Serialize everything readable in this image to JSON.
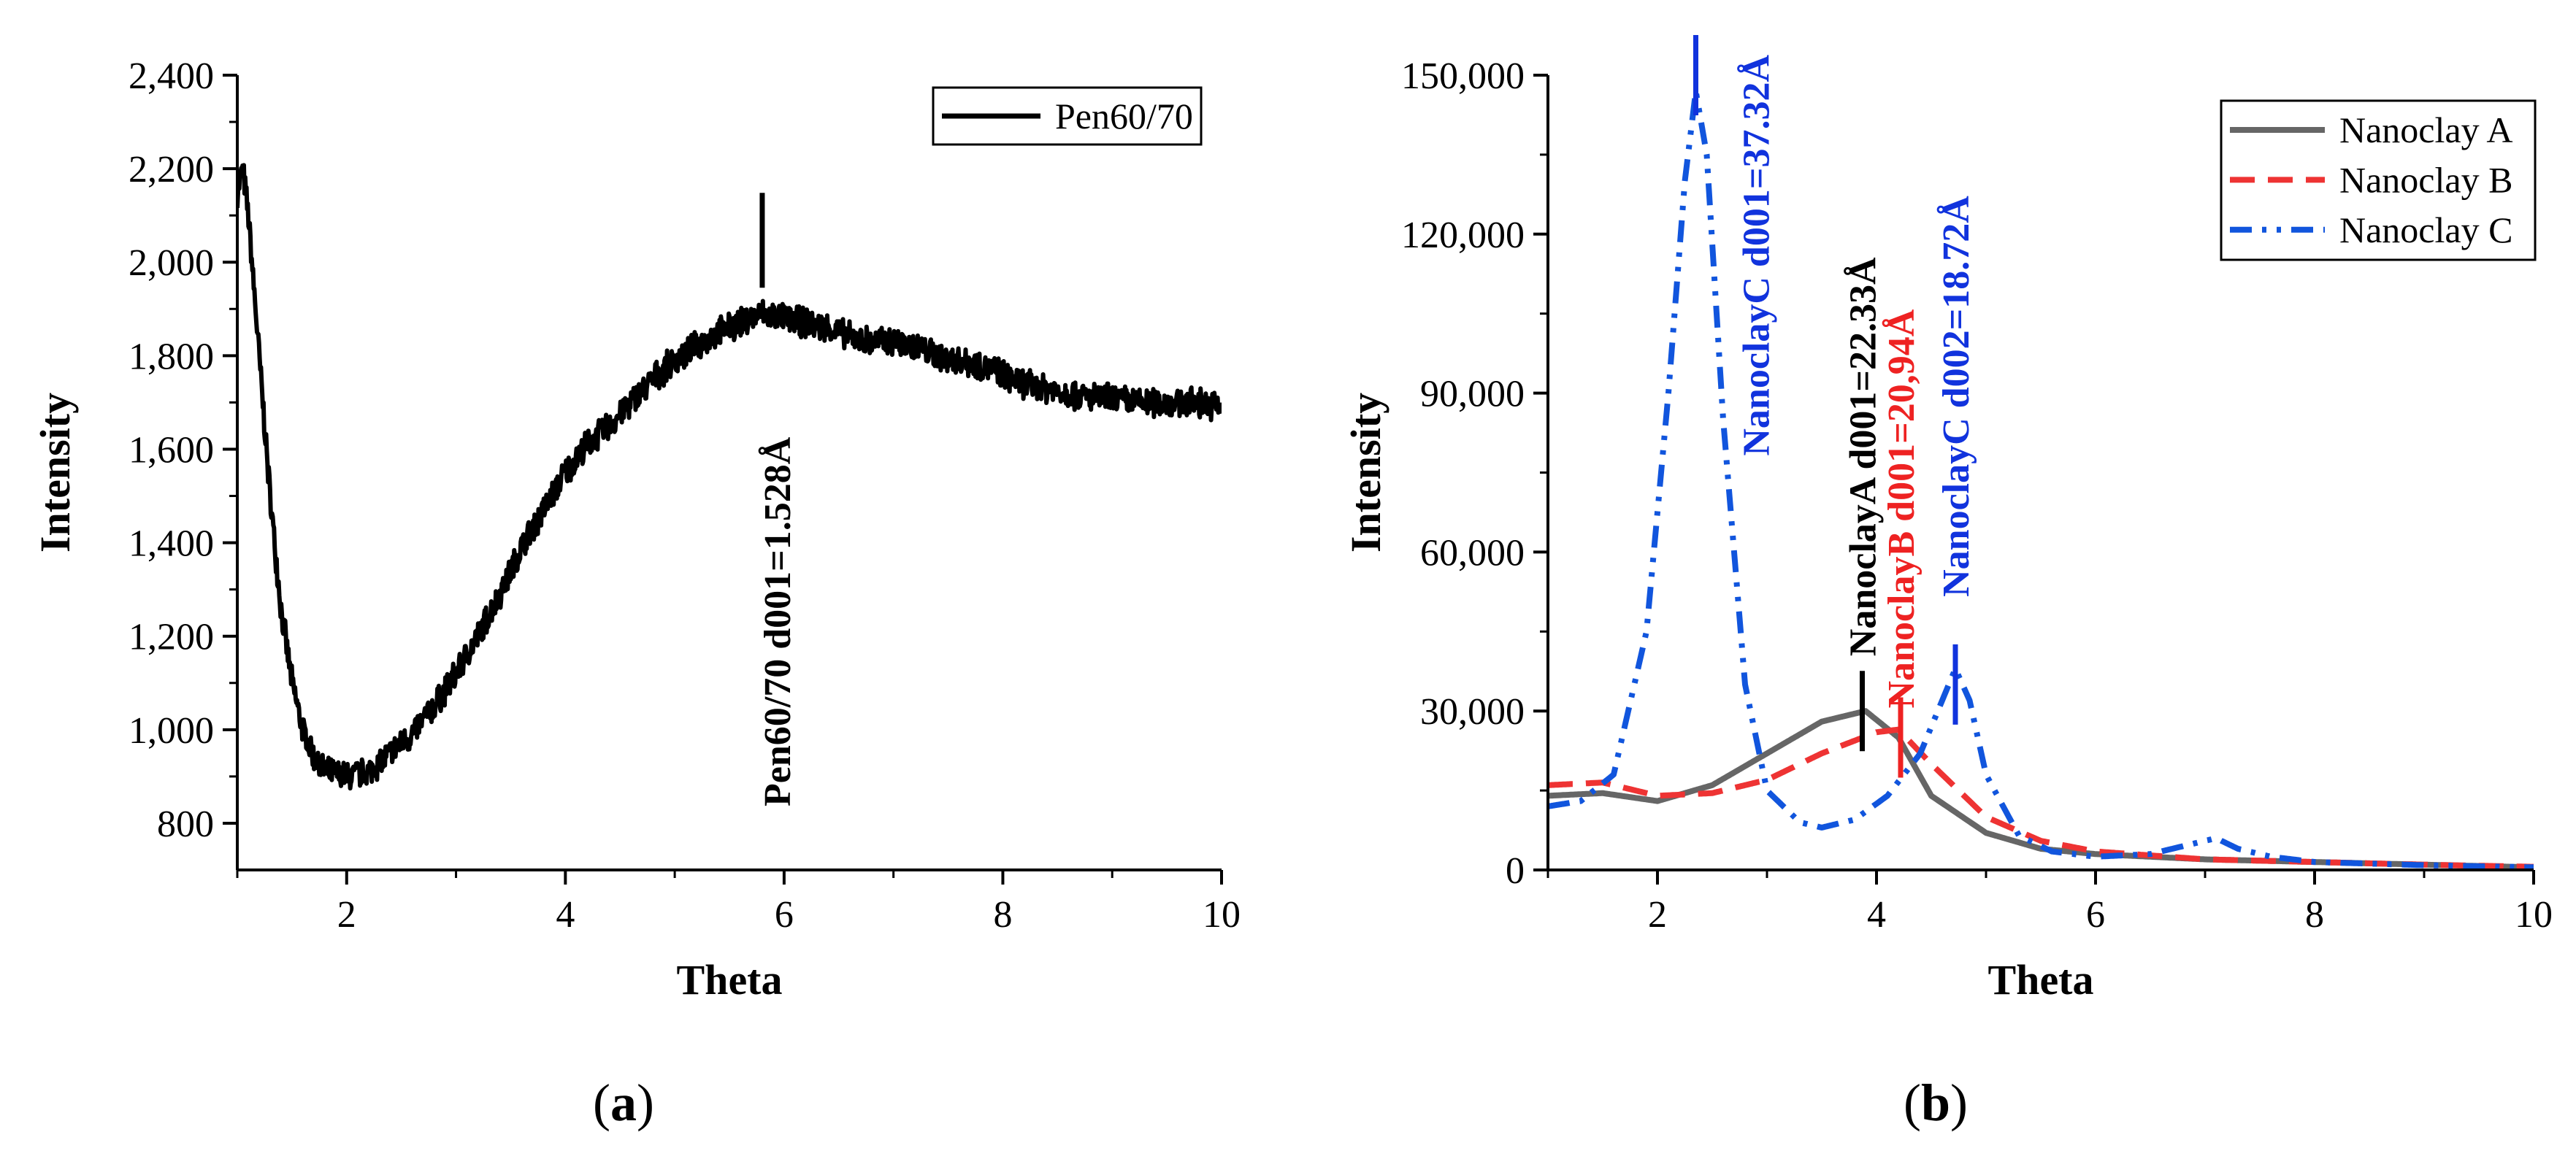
{
  "chart_data": [
    {
      "type": "line",
      "panel": "a",
      "caption": "a",
      "xlabel": "Theta",
      "ylabel": "Intensity",
      "xlim": [
        1,
        10
      ],
      "ylim": [
        700,
        2400
      ],
      "x_ticks": [
        2,
        4,
        6,
        8,
        10
      ],
      "x_tick_labels": [
        "2",
        "4",
        "6",
        "8",
        "10"
      ],
      "y_ticks": [
        800,
        1000,
        1200,
        1400,
        1600,
        1800,
        2000,
        2200,
        2400
      ],
      "y_tick_labels": [
        "800",
        "1,000",
        "1,200",
        "1,400",
        "1,600",
        "1,800",
        "2,000",
        "2,200",
        "2,400"
      ],
      "legend_position": "top-right",
      "series": [
        {
          "name": "Pen60/70",
          "color": "#000000",
          "style": "solid",
          "noisy": true,
          "x": [
            1.0,
            1.05,
            1.1,
            1.2,
            1.3,
            1.4,
            1.5,
            1.6,
            1.7,
            1.8,
            2.0,
            2.2,
            2.4,
            2.6,
            2.8,
            3.0,
            3.2,
            3.4,
            3.6,
            3.8,
            4.0,
            4.2,
            4.4,
            4.6,
            4.8,
            5.0,
            5.2,
            5.4,
            5.6,
            5.8,
            6.0,
            6.2,
            6.4,
            6.6,
            6.8,
            7.0,
            7.2,
            7.4,
            7.6,
            7.8,
            8.0,
            8.2,
            8.4,
            8.6,
            8.8,
            9.0,
            9.2,
            9.4,
            9.6,
            9.8,
            10.0
          ],
          "values": [
            2150,
            2200,
            2100,
            1800,
            1500,
            1260,
            1100,
            1000,
            940,
            910,
            900,
            910,
            950,
            990,
            1050,
            1120,
            1200,
            1290,
            1390,
            1470,
            1550,
            1610,
            1650,
            1700,
            1750,
            1790,
            1820,
            1850,
            1870,
            1890,
            1880,
            1870,
            1860,
            1840,
            1830,
            1830,
            1820,
            1800,
            1790,
            1780,
            1760,
            1740,
            1730,
            1720,
            1710,
            1710,
            1700,
            1700,
            1700,
            1700,
            1690
          ]
        }
      ],
      "annotations": [
        {
          "text": "Pen60/70 d001=1.528Å",
          "x": 5.8,
          "y": 2000,
          "color": "#000000"
        }
      ]
    },
    {
      "type": "line",
      "panel": "b",
      "caption": "b",
      "xlabel": "Theta",
      "ylabel": "Intensity",
      "xlim": [
        1,
        10
      ],
      "ylim": [
        0,
        150000
      ],
      "x_ticks": [
        2,
        4,
        6,
        8,
        10
      ],
      "x_tick_labels": [
        "2",
        "4",
        "6",
        "8",
        "10"
      ],
      "y_ticks": [
        0,
        30000,
        60000,
        90000,
        120000,
        150000
      ],
      "y_tick_labels": [
        "0",
        "30,000",
        "60,000",
        "90,000",
        "120,000",
        "150,000"
      ],
      "legend_position": "top-right",
      "series": [
        {
          "name": "Nanoclay A",
          "color": "#666666",
          "style": "solid",
          "x": [
            1.0,
            1.5,
            2.0,
            2.5,
            3.0,
            3.5,
            3.9,
            4.2,
            4.5,
            5.0,
            5.5,
            6.0,
            7.0,
            8.0,
            9.0,
            10.0
          ],
          "values": [
            14000,
            14500,
            13000,
            16000,
            22000,
            28000,
            30000,
            25000,
            14000,
            7000,
            4000,
            3000,
            2000,
            1500,
            1000,
            500
          ]
        },
        {
          "name": "Nanoclay B",
          "color": "#EE3333",
          "style": "dashed",
          "x": [
            1.0,
            1.5,
            2.0,
            2.5,
            3.0,
            3.5,
            4.0,
            4.2,
            4.5,
            5.0,
            5.5,
            6.0,
            7.0,
            8.0,
            9.0,
            10.0
          ],
          "values": [
            16000,
            16500,
            14000,
            14500,
            17000,
            22000,
            26000,
            26500,
            20000,
            10000,
            5500,
            3500,
            2000,
            1500,
            1000,
            600
          ]
        },
        {
          "name": "Nanoclay C",
          "color": "#1155DD",
          "style": "dashdotdot",
          "x": [
            1.0,
            1.3,
            1.6,
            1.9,
            2.1,
            2.25,
            2.35,
            2.45,
            2.6,
            2.8,
            3.0,
            3.3,
            3.5,
            3.8,
            4.1,
            4.4,
            4.6,
            4.72,
            4.85,
            5.0,
            5.3,
            5.6,
            6.0,
            6.5,
            7.0,
            7.1,
            7.3,
            7.6,
            8.0,
            9.0,
            10.0
          ],
          "values": [
            12000,
            13000,
            18000,
            45000,
            90000,
            130000,
            147000,
            135000,
            85000,
            35000,
            15000,
            9000,
            8000,
            9500,
            14000,
            22000,
            32000,
            38000,
            32000,
            18000,
            6500,
            3500,
            2500,
            3000,
            5500,
            6000,
            4000,
            2500,
            1500,
            900,
            500
          ]
        }
      ],
      "annotations": [
        {
          "text": "NanoclayC d001=37.32Å",
          "x": 2.35,
          "y": 150000,
          "color": "#1133DD"
        },
        {
          "text": "NanoclayA d001=22.33Å",
          "x": 3.87,
          "y": 30000,
          "color": "#000000"
        },
        {
          "text": "NanoclayB d001=20,94Å",
          "x": 4.22,
          "y": 25000,
          "color": "#EE2222"
        },
        {
          "text": "NanoclayC d002=18.72Å",
          "x": 4.72,
          "y": 35000,
          "color": "#1133DD"
        }
      ]
    }
  ]
}
